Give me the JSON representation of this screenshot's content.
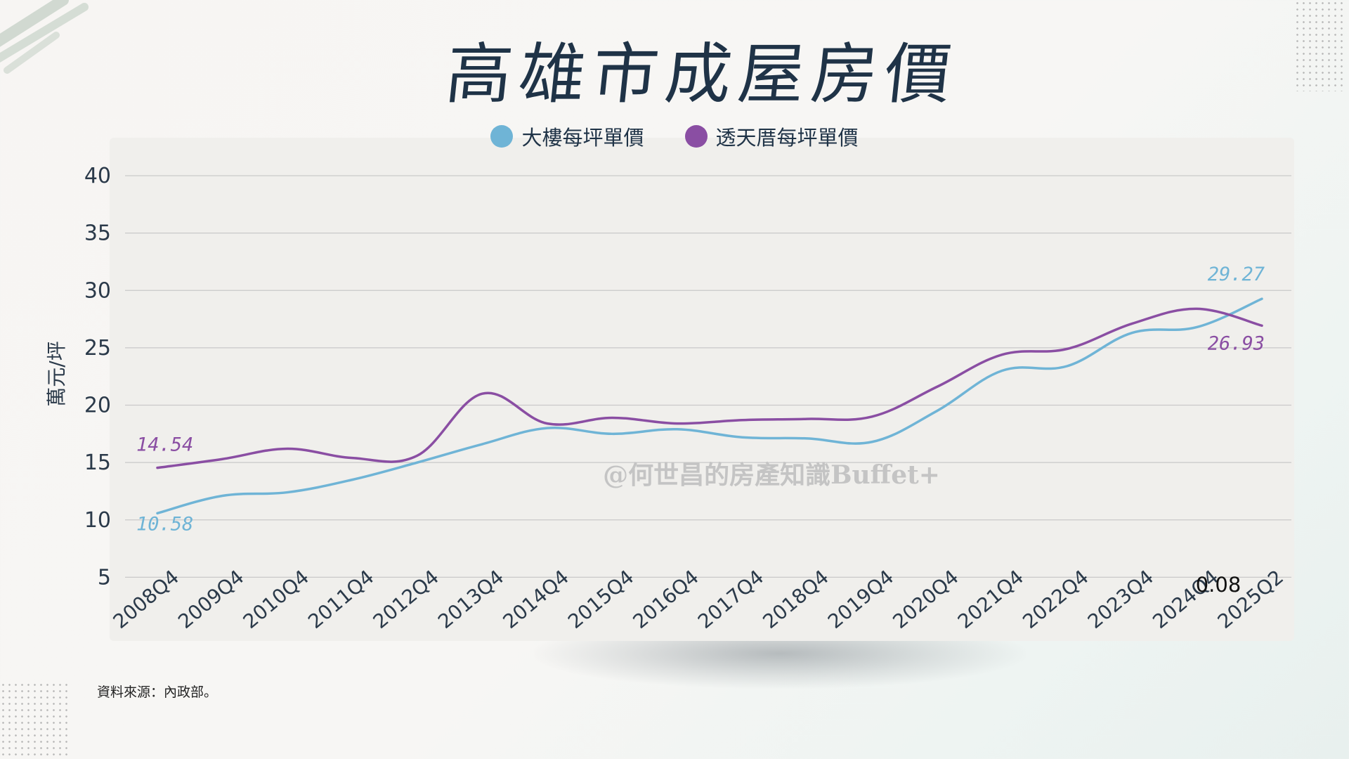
{
  "title": "高雄市成屋房價",
  "source_note": "資料來源：內政部。",
  "watermark": "@何世昌的房產知識Buffet+",
  "stray_label": "0.08",
  "colors": {
    "series_building": "#6fb4d6",
    "series_townhouse": "#8a4ea3",
    "title": "#1f3347",
    "grid": "#c9c9c9"
  },
  "chart_data": {
    "type": "line",
    "title": "高雄市成屋房價",
    "ylabel": "萬元/坪",
    "xlabel": "",
    "ylim": [
      0,
      40
    ],
    "y_ticks": [
      5,
      10,
      15,
      20,
      25,
      30,
      35,
      40
    ],
    "grid": true,
    "legend_position": "top",
    "categories": [
      "2008Q4",
      "2009Q4",
      "2010Q4",
      "2011Q4",
      "2012Q4",
      "2013Q4",
      "2014Q4",
      "2015Q4",
      "2016Q4",
      "2017Q4",
      "2018Q4",
      "2019Q4",
      "2020Q4",
      "2021Q4",
      "2022Q4",
      "2023Q4",
      "2024Q4",
      "2025Q2"
    ],
    "series": [
      {
        "name": "大樓每坪單價",
        "color": "#6fb4d6",
        "values": [
          10.58,
          12.1,
          12.4,
          13.5,
          15.0,
          16.6,
          18.0,
          17.5,
          17.9,
          17.2,
          17.1,
          16.8,
          19.5,
          23.0,
          23.4,
          26.3,
          26.8,
          29.27
        ],
        "labels": [
          {
            "index": 0,
            "text": "10.58"
          },
          {
            "index": 17,
            "text": "29.27"
          }
        ]
      },
      {
        "name": "透天厝每坪單價",
        "color": "#8a4ea3",
        "values": [
          14.54,
          15.3,
          16.2,
          15.4,
          15.6,
          21.0,
          18.4,
          18.9,
          18.4,
          18.7,
          18.8,
          19.0,
          21.6,
          24.4,
          24.9,
          27.1,
          28.4,
          26.93
        ],
        "labels": [
          {
            "index": 0,
            "text": "14.54"
          },
          {
            "index": 17,
            "text": "26.93"
          }
        ]
      }
    ]
  }
}
